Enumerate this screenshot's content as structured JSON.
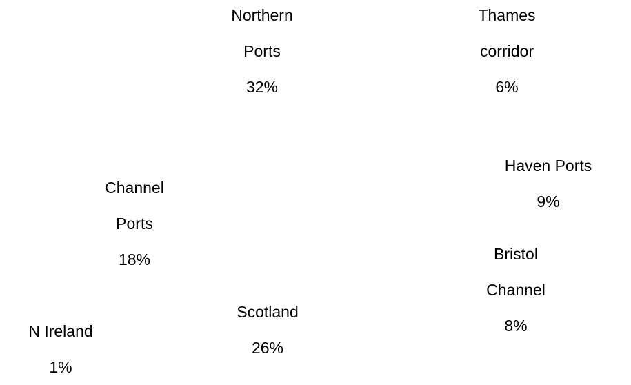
{
  "chart_data": {
    "type": "pie",
    "categories": [
      "Northern Ports",
      "Thames corridor",
      "Haven Ports",
      "Bristol Channel",
      "Scotland",
      "N Ireland",
      "Channel Ports"
    ],
    "values": [
      32,
      6,
      9,
      8,
      26,
      1,
      18
    ],
    "value_labels": [
      "32%",
      "6%",
      "9%",
      "8%",
      "26%",
      "1%",
      "18%"
    ]
  }
}
